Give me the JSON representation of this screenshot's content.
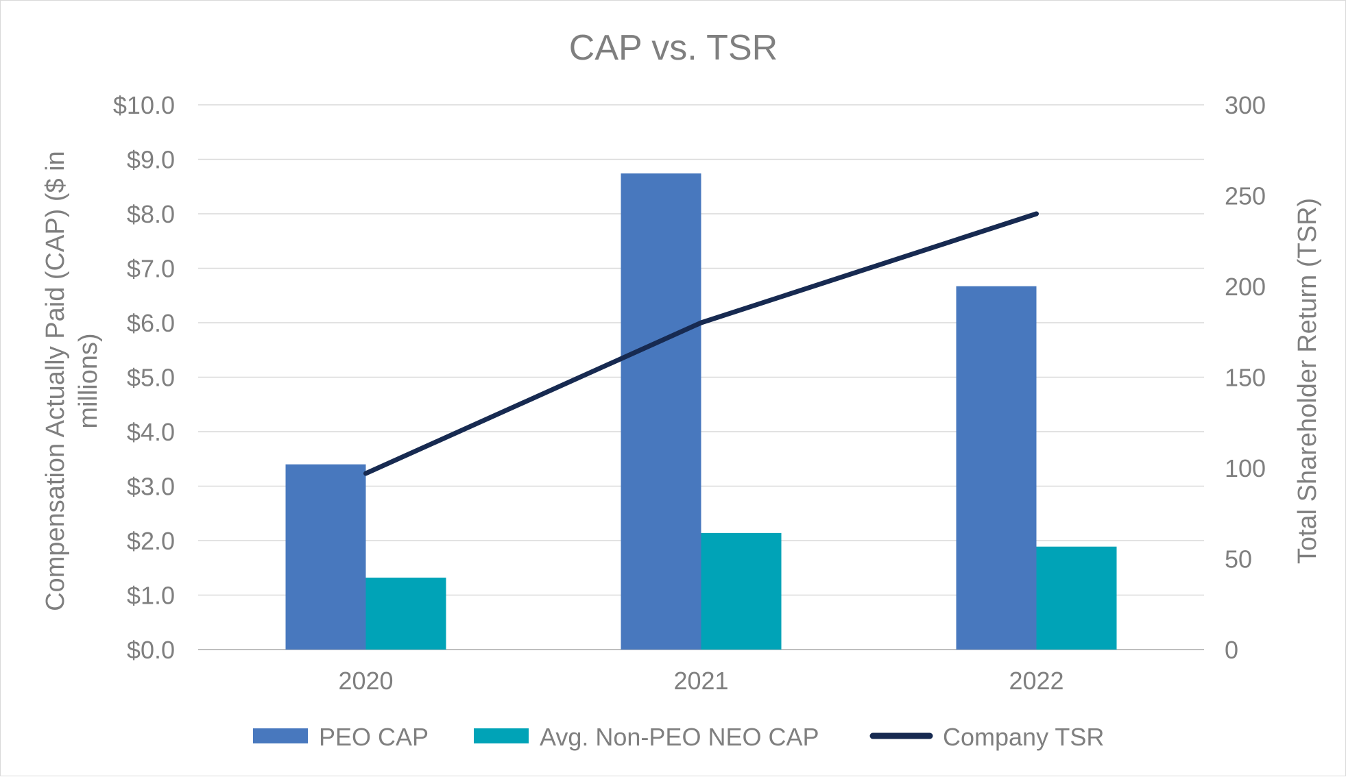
{
  "chart_data": {
    "type": "bar",
    "title": "CAP vs. TSR",
    "categories": [
      "2020",
      "2021",
      "2022"
    ],
    "series": [
      {
        "name": "PEO CAP",
        "kind": "bar",
        "axis": "left",
        "color": "#4878be",
        "values": [
          3.4,
          8.74,
          6.67
        ]
      },
      {
        "name": "Avg. Non-PEO NEO CAP",
        "kind": "bar",
        "axis": "left",
        "color": "#00a3b7",
        "values": [
          1.32,
          2.14,
          1.89
        ]
      },
      {
        "name": "Company TSR",
        "kind": "line",
        "axis": "right",
        "color": "#172a51",
        "values": [
          97,
          180,
          240
        ]
      }
    ],
    "y_left": {
      "label": "Compensation Actually Paid (CAP) ($ in millions)",
      "label_line1": "Compensation Actually Paid (CAP) ($ in",
      "label_line2": "millions)",
      "range": [
        0,
        10
      ],
      "ticks": [
        "$0.0",
        "$1.0",
        "$2.0",
        "$3.0",
        "$4.0",
        "$5.0",
        "$6.0",
        "$7.0",
        "$8.0",
        "$9.0",
        "$10.0"
      ]
    },
    "y_right": {
      "label": "Total Shareholder Return (TSR)",
      "range": [
        0,
        300
      ],
      "ticks": [
        "0",
        "50",
        "100",
        "150",
        "200",
        "250",
        "300"
      ]
    },
    "grid": true,
    "legend_position": "bottom"
  }
}
